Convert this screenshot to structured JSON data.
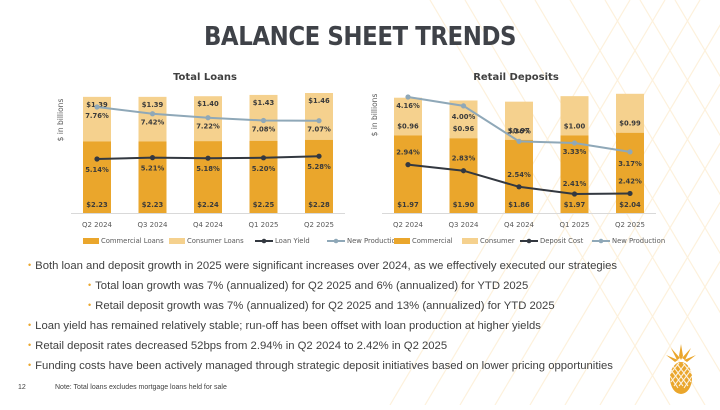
{
  "page": {
    "title": "BALANCE SHEET TRENDS",
    "page_number": "12",
    "note": "Note: Total loans excludes mortgage loans held for sale",
    "logo": "pineapple-icon"
  },
  "colors": {
    "commercial": "#eaa62c",
    "consumer": "#f5d18e",
    "yield_line": "#333840",
    "new_production_line": "#8fa8b8",
    "bullet": "#eaa62c",
    "title": "#3f4248"
  },
  "bullets": [
    {
      "level": 1,
      "text": "Both loan and deposit growth in 2025 were significant increases over 2024, as we effectively executed our strategies"
    },
    {
      "level": 2,
      "text": "Total loan growth was 7% (annualized) for Q2 2025 and 6% (annualized) for YTD 2025"
    },
    {
      "level": 2,
      "text": "Retail deposit growth was 7% (annualized) for Q2 2025 and 13% (annualized) for YTD 2025"
    },
    {
      "level": 1,
      "text": "Loan yield has remained relatively stable; run-off has been offset with loan production at higher yields"
    },
    {
      "level": 1,
      "text": "Retail deposit rates decreased 52bps from 2.94% in Q2 2024 to 2.42% in Q2 2025"
    },
    {
      "level": 1,
      "text": "Funding costs have been actively managed through strategic deposit initiatives based on lower pricing opportunities"
    }
  ],
  "chart_data": [
    {
      "type": "bar",
      "stacked": true,
      "title": "Total Loans",
      "ylabel": "$ in billions",
      "xlabel": "",
      "categories": [
        "Q2 2024",
        "Q3 2024",
        "Q4 2024",
        "Q1 2025",
        "Q2 2025"
      ],
      "series": [
        {
          "name": "Commercial Loans",
          "kind": "bar",
          "values": [
            2.23,
            2.23,
            2.24,
            2.25,
            2.28
          ],
          "labels": [
            "$2.23",
            "$2.23",
            "$2.24",
            "$2.25",
            "$2.28"
          ]
        },
        {
          "name": "Consumer Loans",
          "kind": "bar",
          "values": [
            1.39,
            1.39,
            1.4,
            1.43,
            1.46
          ],
          "labels": [
            "$1.39",
            "$1.39",
            "$1.40",
            "$1.43",
            "$1.46"
          ]
        },
        {
          "name": "Loan Yield",
          "kind": "line",
          "values": [
            5.14,
            5.21,
            5.18,
            5.2,
            5.28
          ],
          "labels": [
            "5.14%",
            "5.21%",
            "5.18%",
            "5.20%",
            "5.28%"
          ]
        },
        {
          "name": "New Production",
          "kind": "line",
          "values": [
            7.76,
            7.42,
            7.22,
            7.08,
            7.07
          ],
          "labels": [
            "7.76%",
            "7.42%",
            "7.22%",
            "7.08%",
            "7.07%"
          ]
        }
      ],
      "legend": [
        "Commercial Loans",
        "Consumer Loans",
        "Loan Yield",
        "New Production"
      ],
      "legend_position": "bottom",
      "grid": false
    },
    {
      "type": "bar",
      "stacked": true,
      "title": "Retail Deposits",
      "ylabel": "$ in billions",
      "xlabel": "",
      "categories": [
        "Q2 2024",
        "Q3 2024",
        "Q4 2024",
        "Q1 2025",
        "Q2 2025"
      ],
      "series": [
        {
          "name": "Commercial",
          "kind": "bar",
          "values": [
            1.97,
            1.9,
            1.86,
            1.97,
            2.04
          ],
          "labels": [
            "$1.97",
            "$1.90",
            "$1.86",
            "$1.97",
            "$2.04"
          ]
        },
        {
          "name": "Consumer",
          "kind": "bar",
          "values": [
            0.96,
            0.96,
            0.97,
            1.0,
            0.99
          ],
          "labels": [
            "$0.96",
            "$0.96",
            "$0.97",
            "$1.00",
            "$0.99"
          ]
        },
        {
          "name": "Deposit Cost",
          "kind": "line",
          "values": [
            2.94,
            2.83,
            2.54,
            2.41,
            2.42
          ],
          "labels": [
            "2.94%",
            "2.83%",
            "2.54%",
            "2.41%",
            "2.42%"
          ]
        },
        {
          "name": "New Production",
          "kind": "line",
          "values": [
            4.16,
            4.0,
            3.36,
            3.33,
            3.17
          ],
          "labels": [
            "4.16%",
            "4.00%",
            "3.36%",
            "3.33%",
            "3.17%"
          ]
        }
      ],
      "legend": [
        "Commercial",
        "Consumer",
        "Deposit Cost",
        "New Production"
      ],
      "legend_position": "bottom",
      "grid": false
    }
  ]
}
